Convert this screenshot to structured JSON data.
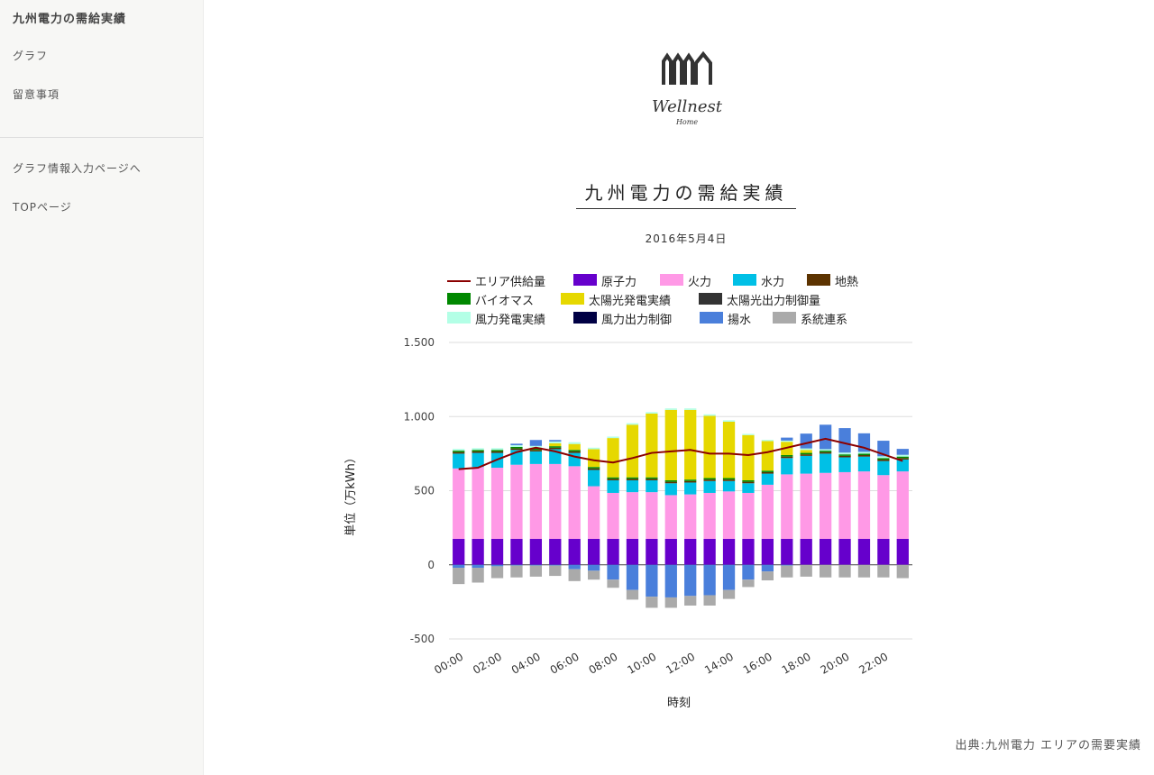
{
  "sidebar": {
    "title": "九州電力の需給実績",
    "items": [
      {
        "label": "グラフ"
      },
      {
        "label": "留意事項"
      },
      {
        "label": "グラフ情報入力ページへ"
      },
      {
        "label": "TOPページ"
      }
    ]
  },
  "logo": {
    "name": "Wellnest",
    "sub": "Home"
  },
  "page": {
    "title": "九州電力の需給実績",
    "date": "2016年5月4日",
    "source": "出典:九州電力 エリアの需要実績"
  },
  "chart_data": {
    "type": "bar",
    "stacked": true,
    "ylabel": "単位（万kWh）",
    "xlabel": "時刻",
    "ylim": [
      -500,
      1500
    ],
    "yticks": [
      1500,
      1000,
      500,
      0,
      -500
    ],
    "ytick_labels": [
      "1.500",
      "1.000",
      "500",
      "0",
      "-500"
    ],
    "grid": true,
    "legend_position": "top",
    "x": [
      "00:00",
      "01:00",
      "02:00",
      "03:00",
      "04:00",
      "05:00",
      "06:00",
      "07:00",
      "08:00",
      "09:00",
      "10:00",
      "11:00",
      "12:00",
      "13:00",
      "14:00",
      "15:00",
      "16:00",
      "17:00",
      "18:00",
      "19:00",
      "20:00",
      "21:00",
      "22:00",
      "23:00"
    ],
    "xtick_labels": [
      "00:00",
      "02:00",
      "04:00",
      "06:00",
      "08:00",
      "10:00",
      "12:00",
      "14:00",
      "16:00",
      "18:00",
      "20:00",
      "22:00"
    ],
    "series": [
      {
        "name": "原子力",
        "color": "#6600cc",
        "values": [
          175,
          175,
          175,
          175,
          175,
          175,
          175,
          175,
          175,
          175,
          175,
          175,
          175,
          175,
          175,
          175,
          175,
          175,
          175,
          175,
          175,
          175,
          175,
          175
        ]
      },
      {
        "name": "火力",
        "color": "#ff99e6",
        "values": [
          475,
          485,
          480,
          500,
          505,
          505,
          490,
          355,
          310,
          315,
          315,
          295,
          300,
          310,
          320,
          310,
          365,
          435,
          440,
          445,
          450,
          455,
          430,
          455
        ]
      },
      {
        "name": "水力",
        "color": "#00c0e6",
        "values": [
          100,
          95,
          100,
          100,
          85,
          100,
          90,
          110,
          85,
          80,
          80,
          80,
          80,
          80,
          70,
          65,
          75,
          110,
          120,
          130,
          100,
          100,
          95,
          80
        ]
      },
      {
        "name": "地熱",
        "color": "#5c3300",
        "values": [
          10,
          10,
          10,
          10,
          10,
          10,
          10,
          10,
          10,
          10,
          10,
          10,
          10,
          10,
          10,
          10,
          10,
          10,
          10,
          10,
          10,
          10,
          10,
          10
        ]
      },
      {
        "name": "バイオマス",
        "color": "#008800",
        "values": [
          10,
          10,
          10,
          10,
          10,
          10,
          10,
          10,
          10,
          10,
          10,
          10,
          10,
          10,
          10,
          10,
          10,
          10,
          10,
          10,
          10,
          10,
          10,
          10
        ]
      },
      {
        "name": "太陽光発電実績",
        "color": "#e6d800",
        "values": [
          0,
          0,
          0,
          0,
          5,
          20,
          40,
          120,
          265,
          355,
          430,
          475,
          470,
          420,
          380,
          305,
          200,
          90,
          20,
          0,
          0,
          0,
          0,
          0
        ]
      },
      {
        "name": "太陽光出力制御量",
        "color": "#333333",
        "values": [
          0,
          0,
          0,
          0,
          0,
          0,
          0,
          0,
          0,
          0,
          0,
          0,
          0,
          0,
          0,
          0,
          0,
          0,
          0,
          0,
          0,
          0,
          0,
          0
        ]
      },
      {
        "name": "風力発電実績",
        "color": "#b3ffe6",
        "values": [
          12,
          12,
          12,
          12,
          12,
          12,
          12,
          10,
          10,
          10,
          10,
          10,
          10,
          10,
          10,
          8,
          8,
          8,
          10,
          10,
          12,
          12,
          12,
          12
        ]
      },
      {
        "name": "風力出力制御",
        "color": "#000044",
        "values": [
          0,
          0,
          0,
          0,
          0,
          0,
          0,
          0,
          0,
          0,
          0,
          0,
          0,
          0,
          0,
          0,
          0,
          0,
          0,
          0,
          0,
          0,
          0,
          0
        ]
      },
      {
        "name": "揚水",
        "color": "#4a7fdb",
        "values": [
          -20,
          -20,
          0,
          0,
          45,
          0,
          0,
          0,
          0,
          0,
          0,
          0,
          0,
          0,
          0,
          0,
          0,
          0,
          0,
          0,
          0,
          0,
          0,
          0
        ]
      },
      {
        "name": "揚水_pos",
        "color": "#4a7fdb",
        "values": [
          0,
          0,
          0,
          10,
          40,
          10,
          0,
          0,
          0,
          0,
          0,
          0,
          0,
          0,
          0,
          0,
          0,
          20,
          100,
          165,
          165,
          125,
          105,
          40
        ]
      },
      {
        "name": "系統連系",
        "color": "#aaaaaa",
        "values": [
          -110,
          -100,
          -80,
          -80,
          -75,
          -70,
          -80,
          -60,
          -55,
          -65,
          -75,
          -70,
          -65,
          -70,
          -60,
          -50,
          -60,
          -80,
          -80,
          -85,
          -85,
          -85,
          -85,
          -90
        ]
      }
    ],
    "pumped_negative": [
      -20,
      -20,
      -10,
      -5,
      -5,
      -5,
      -30,
      -40,
      -100,
      -170,
      -215,
      -220,
      -210,
      -205,
      -170,
      -100,
      -45,
      -5,
      0,
      0,
      0,
      0,
      0,
      0
    ],
    "grid_negative": [
      -110,
      -100,
      -80,
      -80,
      -75,
      -70,
      -80,
      -60,
      -55,
      -65,
      -75,
      -70,
      -65,
      -70,
      -60,
      -50,
      -60,
      -80,
      -80,
      -85,
      -85,
      -85,
      -85,
      -90
    ],
    "line_series": {
      "name": "エリア供給量",
      "color": "#8b0000",
      "values": [
        645,
        655,
        710,
        760,
        790,
        765,
        730,
        705,
        690,
        720,
        755,
        765,
        775,
        750,
        750,
        740,
        760,
        790,
        820,
        850,
        820,
        790,
        745,
        700
      ]
    }
  }
}
